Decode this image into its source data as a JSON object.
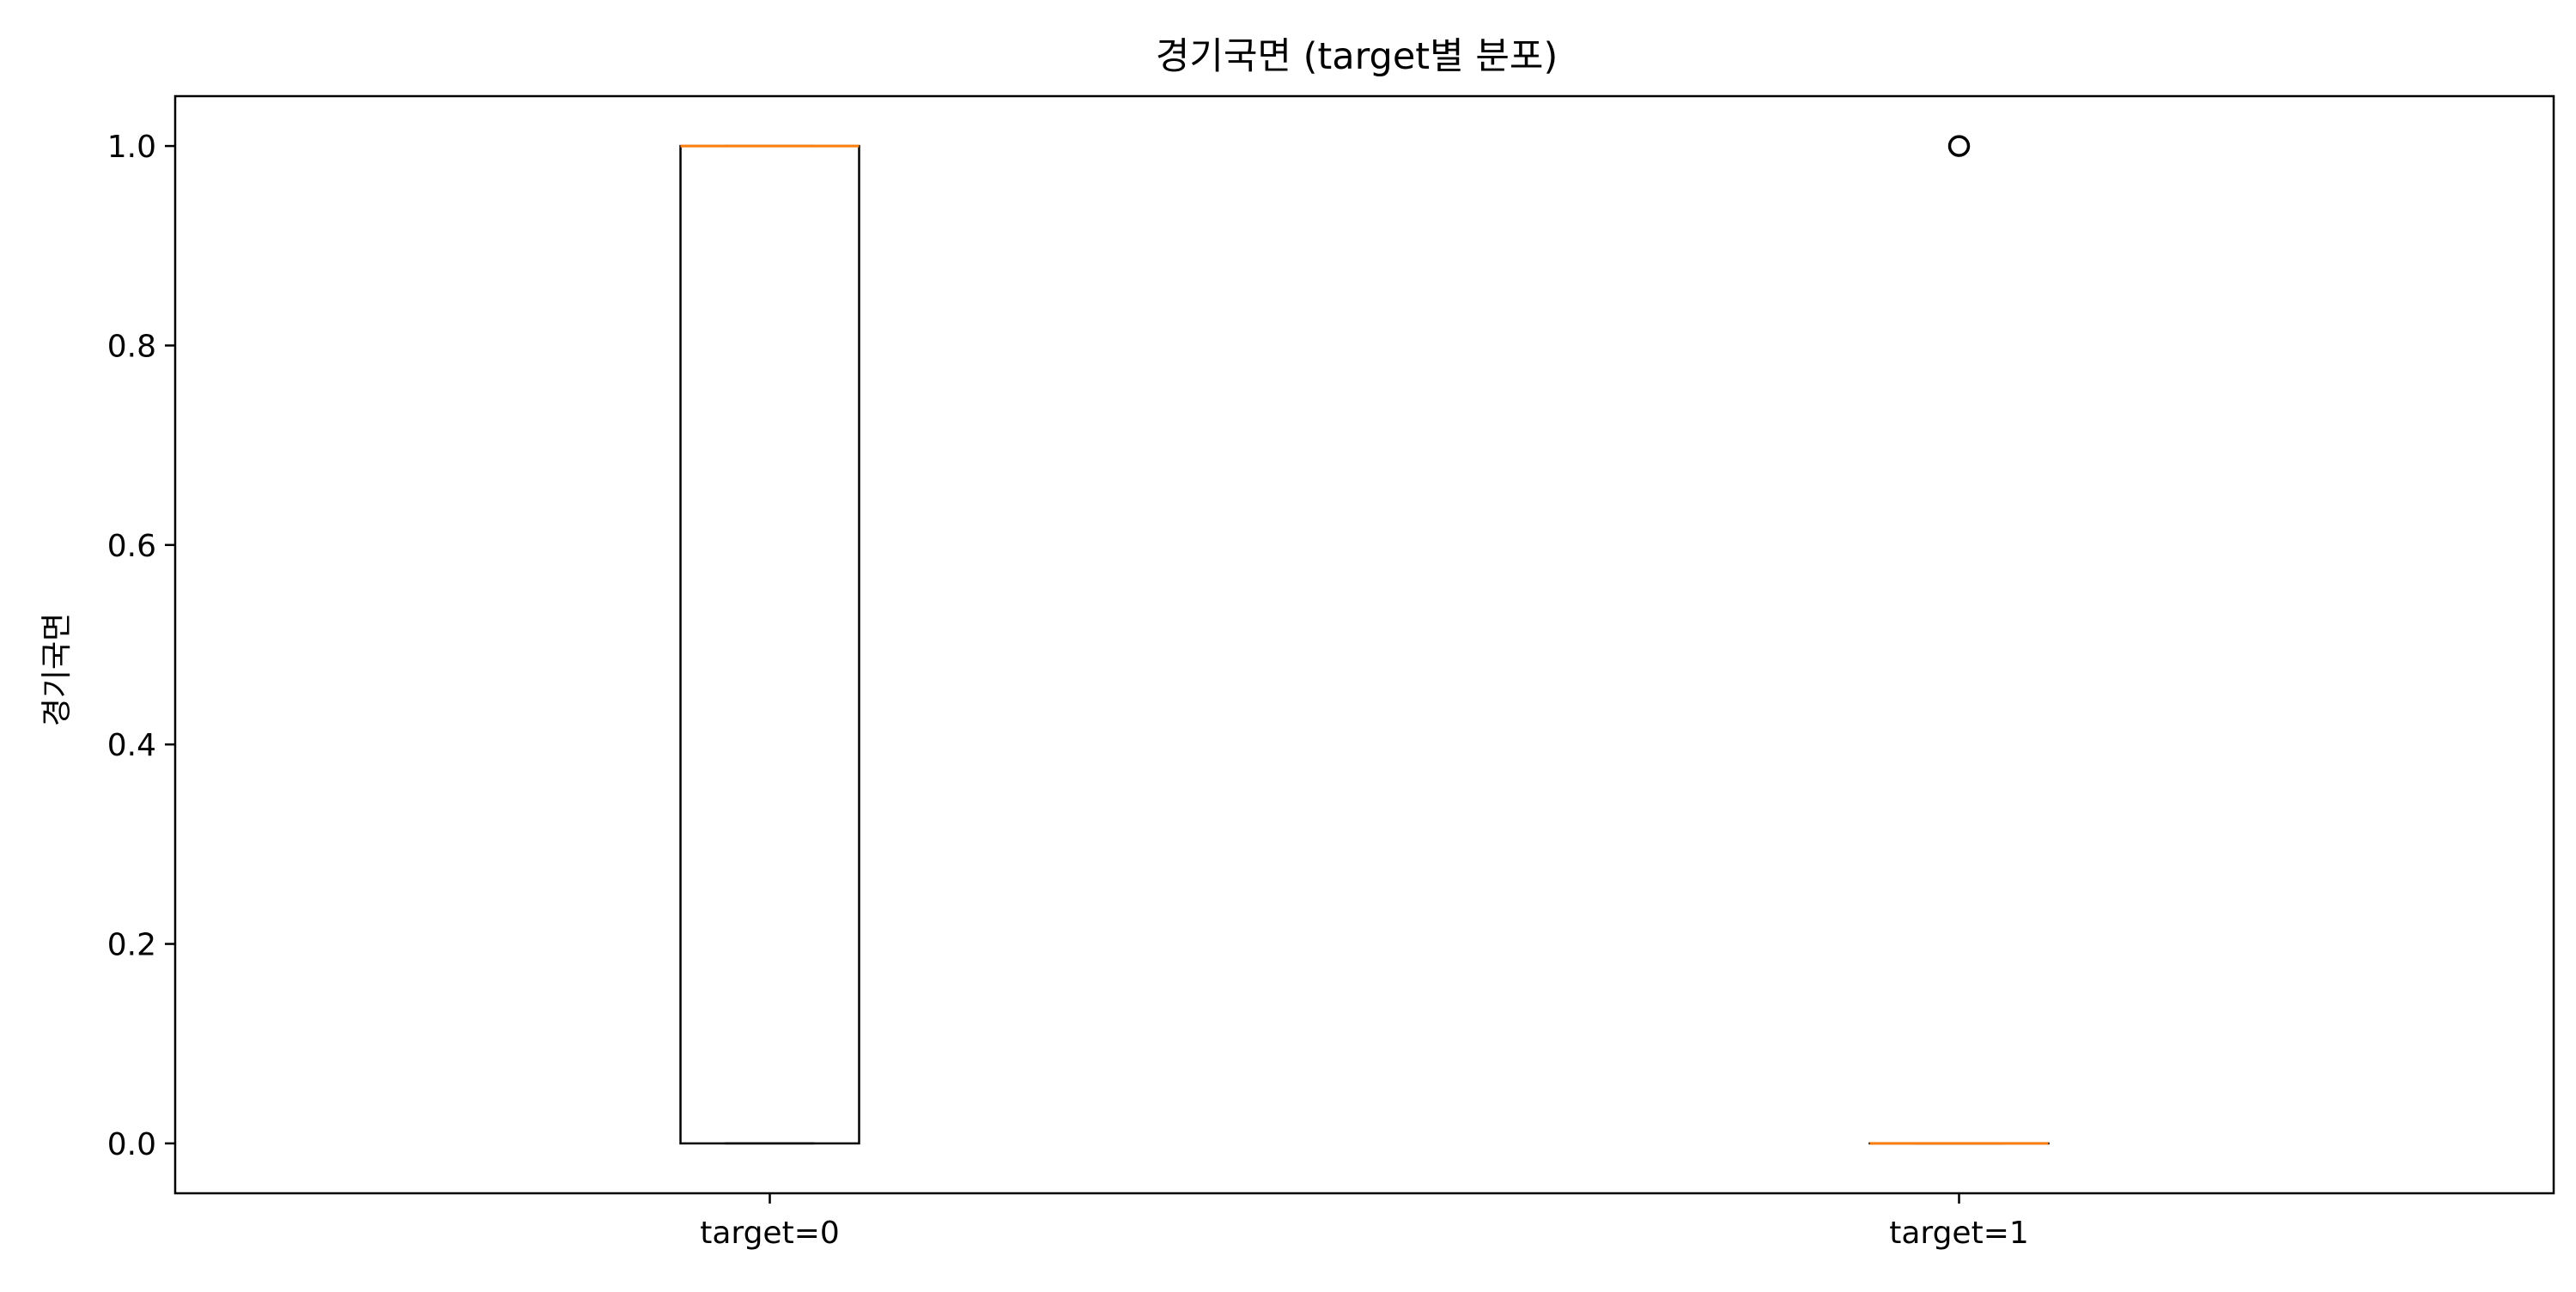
{
  "chart_data": {
    "type": "boxplot",
    "title": "경기국면 (target별 분포)",
    "xlabel": "",
    "ylabel": "경기국면",
    "categories": [
      "target=0",
      "target=1"
    ],
    "ylim": [
      -0.05,
      1.05
    ],
    "yticks": [
      "0.0",
      "0.2",
      "0.4",
      "0.6",
      "0.8",
      "1.0"
    ],
    "boxes": [
      {
        "category": "target=0",
        "whislo": 0.0,
        "q1": 0.0,
        "median": 1.0,
        "q3": 1.0,
        "whishi": 1.0,
        "fliers": []
      },
      {
        "category": "target=1",
        "whislo": 0.0,
        "q1": 0.0,
        "median": 0.0,
        "q3": 0.0,
        "whishi": 0.0,
        "fliers": [
          1.0
        ]
      }
    ],
    "grid": false,
    "colors": {
      "box": "#000000",
      "median": "#ff7f0e",
      "flier": "#000000"
    }
  }
}
